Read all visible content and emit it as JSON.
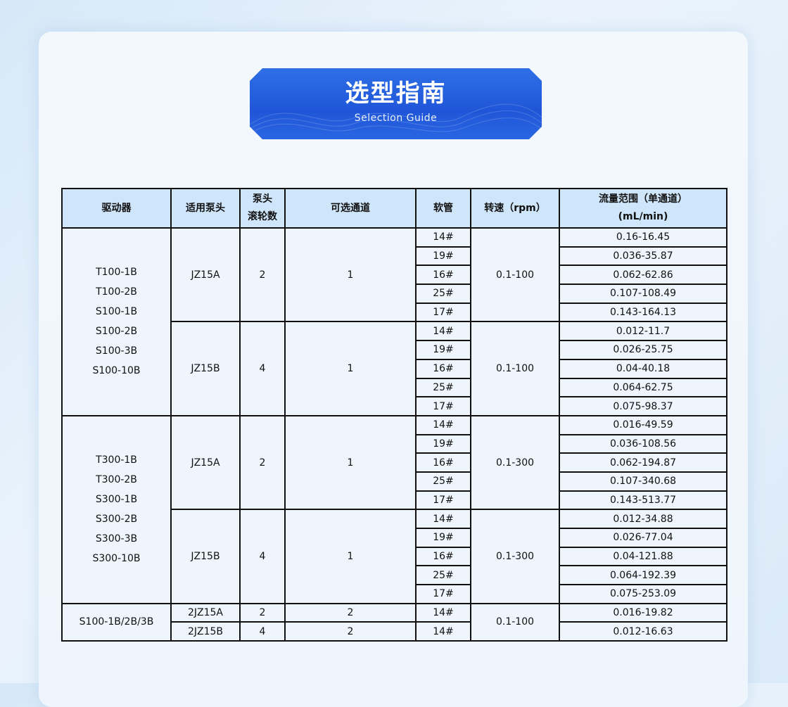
{
  "banner": {
    "title": "选型指南",
    "subtitle": "Selection Guide"
  },
  "table": {
    "headers": [
      {
        "lines": [
          "驱动器"
        ]
      },
      {
        "lines": [
          "适用泵头"
        ]
      },
      {
        "lines": [
          "泵头",
          "滚轮数"
        ]
      },
      {
        "lines": [
          "可选通道"
        ]
      },
      {
        "lines": [
          "软管"
        ]
      },
      {
        "lines": [
          "转速（rpm）"
        ]
      },
      {
        "lines": [
          "流量范围（单通道）",
          "(mL/min)"
        ]
      }
    ],
    "groups": [
      {
        "drivers": [
          "T100-1B",
          "T100-2B",
          "S100-1B",
          "S100-2B",
          "S100-3B",
          "S100-10B"
        ],
        "heads": [
          {
            "head": "JZ15A",
            "rollers": "2",
            "channels": "1",
            "speed": "0.1-100",
            "tubes": [
              {
                "tube": "14#",
                "flow": "0.16-16.45"
              },
              {
                "tube": "19#",
                "flow": "0.036-35.87"
              },
              {
                "tube": "16#",
                "flow": "0.062-62.86"
              },
              {
                "tube": "25#",
                "flow": "0.107-108.49"
              },
              {
                "tube": "17#",
                "flow": "0.143-164.13"
              }
            ]
          },
          {
            "head": "JZ15B",
            "rollers": "4",
            "channels": "1",
            "speed": "0.1-100",
            "tubes": [
              {
                "tube": "14#",
                "flow": "0.012-11.7"
              },
              {
                "tube": "19#",
                "flow": "0.026-25.75"
              },
              {
                "tube": "16#",
                "flow": "0.04-40.18"
              },
              {
                "tube": "25#",
                "flow": "0.064-62.75"
              },
              {
                "tube": "17#",
                "flow": "0.075-98.37"
              }
            ]
          }
        ]
      },
      {
        "drivers": [
          "T300-1B",
          "T300-2B",
          "S300-1B",
          "S300-2B",
          "S300-3B",
          "S300-10B"
        ],
        "heads": [
          {
            "head": "JZ15A",
            "rollers": "2",
            "channels": "1",
            "speed": "0.1-300",
            "tubes": [
              {
                "tube": "14#",
                "flow": "0.016-49.59"
              },
              {
                "tube": "19#",
                "flow": "0.036-108.56"
              },
              {
                "tube": "16#",
                "flow": "0.062-194.87"
              },
              {
                "tube": "25#",
                "flow": "0.107-340.68"
              },
              {
                "tube": "17#",
                "flow": "0.143-513.77"
              }
            ]
          },
          {
            "head": "JZ15B",
            "rollers": "4",
            "channels": "1",
            "speed": "0.1-300",
            "tubes": [
              {
                "tube": "14#",
                "flow": "0.012-34.88"
              },
              {
                "tube": "19#",
                "flow": "0.026-77.04"
              },
              {
                "tube": "16#",
                "flow": "0.04-121.88"
              },
              {
                "tube": "25#",
                "flow": "0.064-192.39"
              },
              {
                "tube": "17#",
                "flow": "0.075-253.09"
              }
            ]
          }
        ]
      },
      {
        "drivers": [
          "S100-1B/2B/3B"
        ],
        "speed": "0.1-100",
        "heads": [
          {
            "head": "2JZ15A",
            "rollers": "2",
            "channels": "2",
            "tubes": [
              {
                "tube": "14#",
                "flow": "0.016-19.82"
              }
            ]
          },
          {
            "head": "2JZ15B",
            "rollers": "4",
            "channels": "2",
            "tubes": [
              {
                "tube": "14#",
                "flow": "0.012-16.63"
              }
            ]
          }
        ]
      }
    ]
  }
}
